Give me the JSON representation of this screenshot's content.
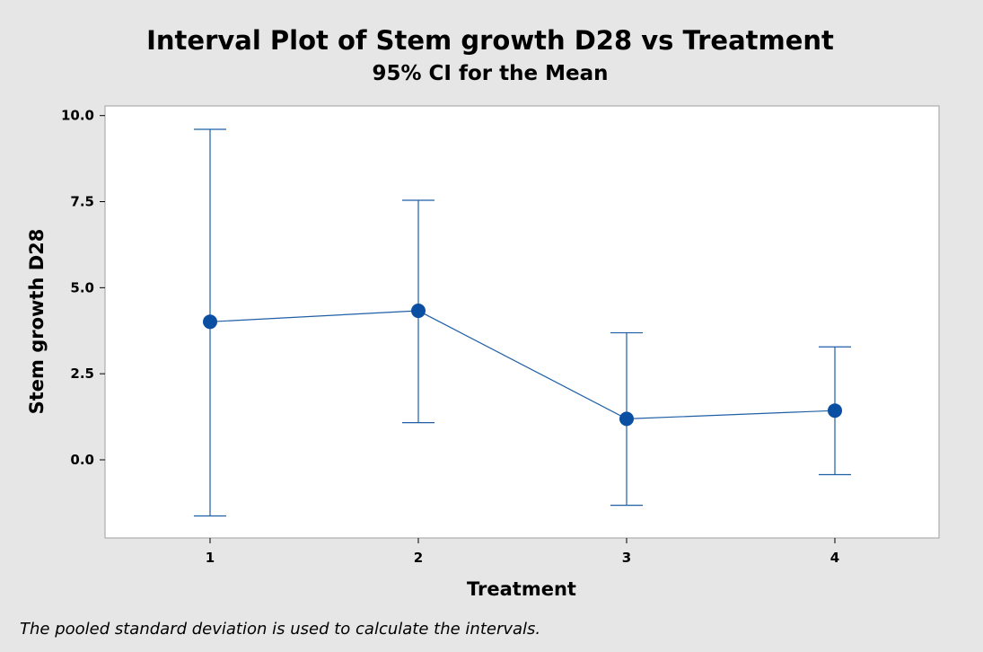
{
  "chart_data": {
    "type": "interval",
    "title": "Interval Plot of Stem growth D28 vs Treatment",
    "subtitle": "95% CI for the Mean",
    "xlabel": "Treatment",
    "ylabel": "Stem growth D28",
    "categories": [
      "1",
      "2",
      "3",
      "4"
    ],
    "means": [
      4.01,
      4.33,
      1.19,
      1.43
    ],
    "ci_lower": [
      -1.63,
      1.08,
      -1.32,
      -0.43
    ],
    "ci_upper": [
      9.6,
      7.54,
      3.69,
      3.28
    ],
    "yticks": [
      0.0,
      2.5,
      5.0,
      7.5,
      10.0
    ],
    "ytick_labels": [
      "0.0",
      "2.5",
      "5.0",
      "7.5",
      "10.0"
    ],
    "ylim": [
      -2.3,
      10.3
    ],
    "grid": false,
    "series_color": "#1f5fa6",
    "marker_color": "#0b4fa3"
  },
  "footnote": "The pooled standard deviation is used to calculate the intervals.",
  "colors": {
    "background": "#e6e6e6",
    "plot_area": "#ffffff",
    "plot_border": "#a0a0a0"
  }
}
